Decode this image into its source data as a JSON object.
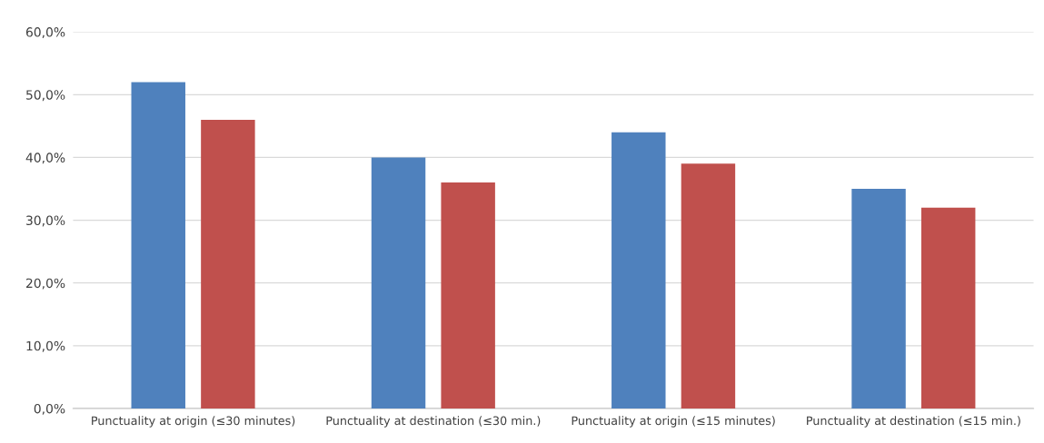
{
  "chart_data": {
    "type": "bar",
    "categories": [
      "Punctuality at origin (≤30 minutes)",
      "Punctuality at destination (≤30 min.)",
      "Punctuality at origin (≤15 minutes)",
      "Punctuality at destination (≤15 min.)"
    ],
    "series": [
      {
        "color": "#4f81bd",
        "values": [
          52,
          40,
          44,
          35
        ]
      },
      {
        "color": "#c0504d",
        "values": [
          46,
          36,
          39,
          32
        ]
      }
    ],
    "ylim": [
      0,
      60
    ],
    "yticks": [
      {
        "value": 0,
        "label": "0,0%"
      },
      {
        "value": 10,
        "label": "10,0%"
      },
      {
        "value": 20,
        "label": "20,0%"
      },
      {
        "value": 30,
        "label": "30,0%"
      },
      {
        "value": 40,
        "label": "40,0%"
      },
      {
        "value": 50,
        "label": "50,0%"
      },
      {
        "value": 60,
        "label": "60,0%"
      }
    ],
    "grid": "y"
  }
}
